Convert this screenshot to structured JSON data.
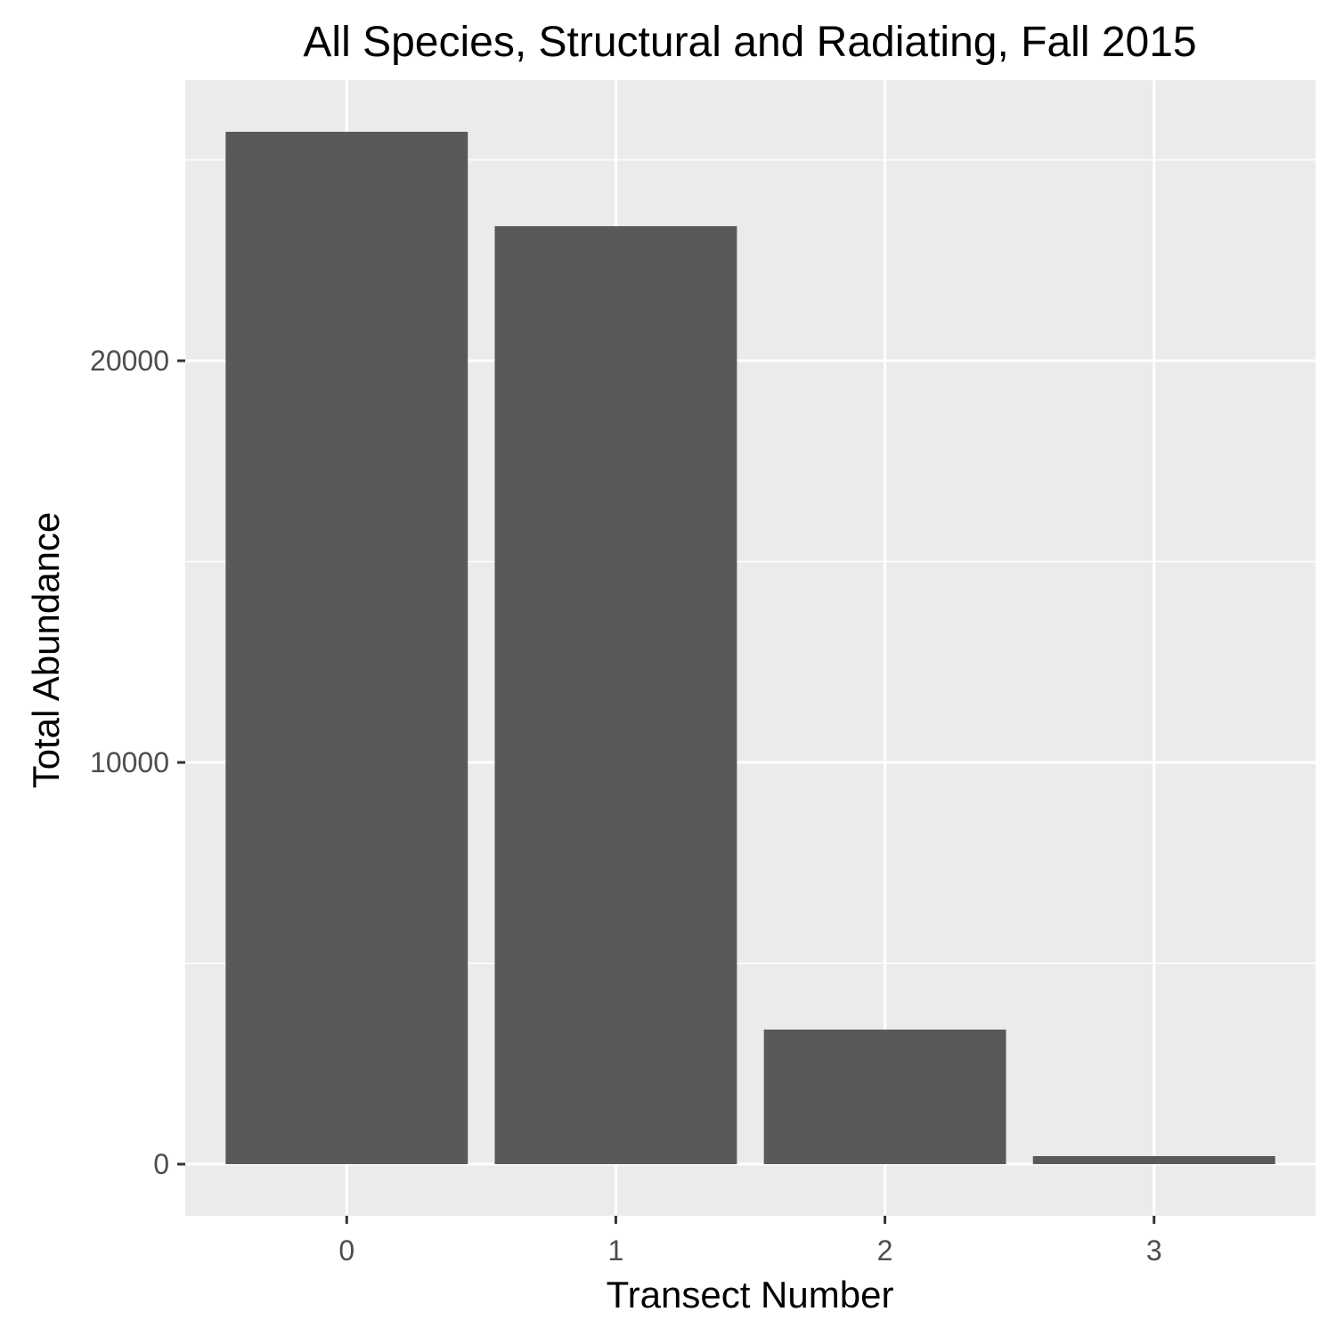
{
  "chart_data": {
    "type": "bar",
    "title": "All Species, Structural and Radiating, Fall 2015",
    "xlabel": "Transect Number",
    "ylabel": "Total Abundance",
    "categories": [
      "0",
      "1",
      "2",
      "3"
    ],
    "values": [
      25700,
      23350,
      3350,
      200
    ],
    "y_ticks": [
      0,
      10000,
      20000
    ],
    "y_tick_labels": [
      "0",
      "10000",
      "20000"
    ],
    "ylim": [
      -1285,
      26985
    ],
    "grid": true,
    "legend": "none",
    "colors": {
      "bar": "#595959",
      "panel": "#ebebeb",
      "grid": "#ffffff",
      "tick_text": "#4d4d4d",
      "tick_mark": "#333333"
    }
  }
}
